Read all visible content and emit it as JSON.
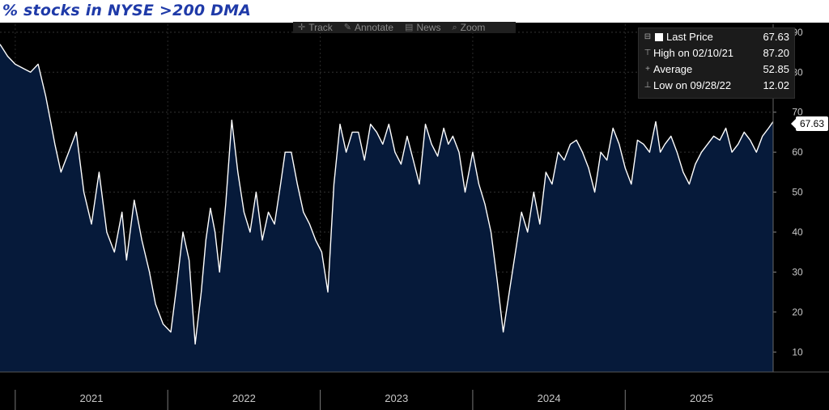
{
  "page_title": "% stocks in NYSE >200 DMA",
  "toolbar": {
    "items": [
      {
        "label": "Track",
        "icon": "crosshair-icon"
      },
      {
        "label": "Annotate",
        "icon": "pencil-icon"
      },
      {
        "label": "News",
        "icon": "news-icon"
      },
      {
        "label": "Zoom",
        "icon": "magnifier-icon"
      }
    ]
  },
  "legend": {
    "last_label": "Last Price",
    "last_value": "67.63",
    "high_label": "High on 02/10/21",
    "high_value": "87.20",
    "avg_label": "Average",
    "avg_value": "52.85",
    "low_label": "Low on 09/28/22",
    "low_value": "12.02"
  },
  "last_tag": "67.63",
  "colors": {
    "background": "#000000",
    "area_fill": "#061a3a",
    "line": "#ffffff",
    "grid": "#3a3a3a",
    "axis_text": "#c8c8c8",
    "title": "#1f3aa8"
  },
  "chart_data": {
    "type": "area",
    "y_axis_side": "right",
    "ylim": [
      5,
      92
    ],
    "y_ticks": [
      10,
      20,
      30,
      40,
      50,
      60,
      70,
      80,
      90
    ],
    "x_ticks": [
      "2021",
      "2022",
      "2023",
      "2024",
      "2025"
    ],
    "grid": true,
    "legend_position": "top-right",
    "series": [
      {
        "x": [
          2020.9,
          2020.95,
          2021.0,
          2021.05,
          2021.1,
          2021.15,
          2021.2,
          2021.23,
          2021.26,
          2021.3,
          2021.35,
          2021.4,
          2021.45,
          2021.5,
          2021.55,
          2021.6,
          2021.65,
          2021.7,
          2021.73,
          2021.78,
          2021.83,
          2021.88,
          2021.92,
          2021.97,
          2022.02,
          2022.06,
          2022.1,
          2022.14,
          2022.18,
          2022.22,
          2022.25,
          2022.28,
          2022.31,
          2022.34,
          2022.38,
          2022.42,
          2022.46,
          2022.5,
          2022.54,
          2022.58,
          2022.62,
          2022.66,
          2022.7,
          2022.74,
          2022.77,
          2022.81,
          2022.85,
          2022.89,
          2022.93,
          2022.97,
          2023.01,
          2023.05,
          2023.09,
          2023.13,
          2023.17,
          2023.21,
          2023.25,
          2023.29,
          2023.33,
          2023.37,
          2023.41,
          2023.45,
          2023.49,
          2023.53,
          2023.57,
          2023.61,
          2023.65,
          2023.69,
          2023.73,
          2023.77,
          2023.81,
          2023.84,
          2023.87,
          2023.91,
          2023.95,
          2024.0,
          2024.04,
          2024.08,
          2024.12,
          2024.16,
          2024.2,
          2024.24,
          2024.28,
          2024.32,
          2024.36,
          2024.4,
          2024.44,
          2024.48,
          2024.52,
          2024.56,
          2024.6,
          2024.64,
          2024.68,
          2024.72,
          2024.76,
          2024.8,
          2024.84,
          2024.88,
          2024.92,
          2024.96,
          2025.0,
          2025.04,
          2025.08,
          2025.12,
          2025.16,
          2025.2,
          2025.23,
          2025.26,
          2025.3,
          2025.34,
          2025.38,
          2025.42,
          2025.46,
          2025.5,
          2025.54,
          2025.58,
          2025.62,
          2025.66,
          2025.7,
          2025.74,
          2025.78,
          2025.82,
          2025.86,
          2025.9,
          2025.94,
          2025.97
        ],
        "values": [
          87,
          84,
          82,
          81,
          80,
          82,
          74,
          68,
          62,
          55,
          60,
          65,
          50,
          42,
          55,
          40,
          35,
          45,
          33,
          48,
          38,
          30,
          22,
          17,
          15,
          27,
          40,
          33,
          12,
          25,
          38,
          46,
          40,
          30,
          47,
          68,
          55,
          45,
          40,
          50,
          38,
          45,
          42,
          52,
          60,
          60,
          52,
          45,
          42,
          38,
          35,
          25,
          52,
          67,
          60,
          65,
          65,
          58,
          67,
          65,
          62,
          67,
          60,
          57,
          64,
          58,
          52,
          67,
          62,
          59,
          66,
          62,
          64,
          60,
          50,
          60,
          52,
          47,
          40,
          28,
          15,
          25,
          35,
          45,
          40,
          50,
          42,
          55,
          52,
          60,
          58,
          62,
          63,
          60,
          56,
          50,
          60,
          58,
          66,
          62,
          56,
          52,
          63,
          62,
          60,
          67.63,
          60,
          62,
          64,
          60,
          55,
          52,
          57,
          60,
          62,
          64,
          63,
          66,
          60,
          62,
          65,
          63,
          60,
          64,
          66,
          67.63
        ]
      }
    ]
  }
}
